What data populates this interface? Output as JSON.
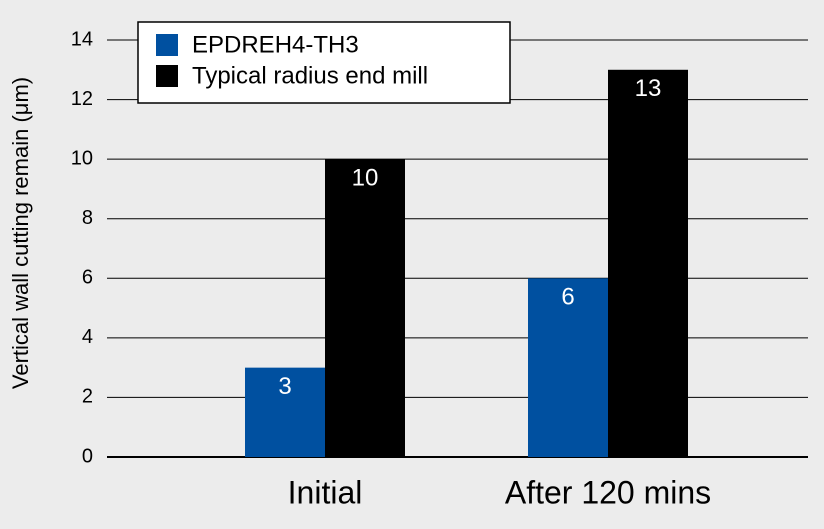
{
  "chart_data": {
    "type": "bar",
    "y_label": "Vertical wall cutting remain (μm)",
    "categories": [
      "Initial",
      "After 120 mins"
    ],
    "series": [
      {
        "name": "EPDREH4-TH3",
        "color": "#0050a0",
        "values": [
          3,
          6
        ]
      },
      {
        "name": "Typical radius end mill",
        "color": "#000000",
        "values": [
          10,
          13
        ]
      }
    ],
    "ylim": [
      0,
      14
    ],
    "yticks": [
      0,
      2,
      4,
      6,
      8,
      10,
      12,
      14
    ],
    "grid": true,
    "legend": "upper left",
    "data_labels": true
  }
}
